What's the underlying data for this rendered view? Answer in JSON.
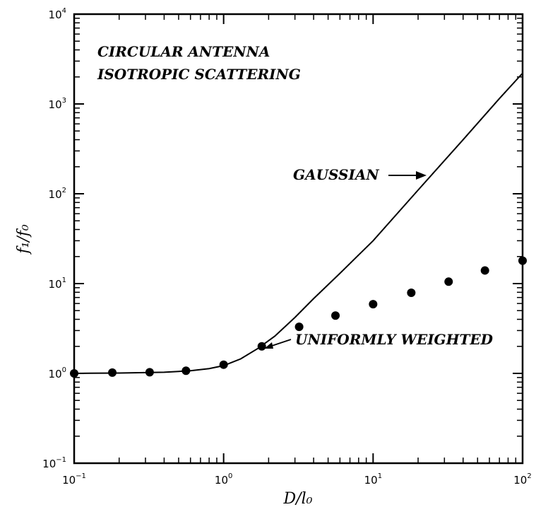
{
  "chart_data": {
    "type": "line",
    "title": "",
    "xlabel": "D/l₀",
    "ylabel": "f₁/f₀",
    "xscale": "log",
    "yscale": "log",
    "xlim": [
      0.1,
      100
    ],
    "ylim": [
      0.1,
      10000
    ],
    "x_ticks": [
      {
        "base": "10",
        "exp": "−1"
      },
      {
        "base": "10",
        "exp": "0"
      },
      {
        "base": "10",
        "exp": "1"
      },
      {
        "base": "10",
        "exp": "2"
      }
    ],
    "y_ticks": [
      {
        "base": "10",
        "exp": "−1"
      },
      {
        "base": "10",
        "exp": "0"
      },
      {
        "base": "10",
        "exp": "1"
      },
      {
        "base": "10",
        "exp": "2"
      },
      {
        "base": "10",
        "exp": "3"
      },
      {
        "base": "10",
        "exp": "4"
      }
    ],
    "grid": false,
    "annotations": [
      "CIRCULAR ANTENNA",
      "ISOTROPIC SCATTERING",
      "GAUSSIAN",
      "UNIFORMLY WEIGHTED"
    ],
    "series": [
      {
        "name": "GAUSSIAN",
        "style": "line",
        "x": [
          0.1,
          0.2,
          0.4,
          0.6,
          0.8,
          1.0,
          1.3,
          1.7,
          2.2,
          3.0,
          4.0,
          6.0,
          10,
          20,
          40,
          70,
          100
        ],
        "y": [
          1.0,
          1.01,
          1.03,
          1.07,
          1.13,
          1.22,
          1.45,
          1.9,
          2.6,
          4.2,
          6.8,
          13,
          30,
          110,
          400,
          1150,
          2200
        ]
      },
      {
        "name": "UNIFORMLY WEIGHTED",
        "style": "points",
        "x": [
          0.1,
          0.18,
          0.32,
          0.56,
          1.0,
          1.8,
          3.2,
          5.6,
          10,
          18,
          32,
          56,
          100
        ],
        "y": [
          1.0,
          1.02,
          1.03,
          1.07,
          1.25,
          2.0,
          3.3,
          4.4,
          5.9,
          7.9,
          10.5,
          14.0,
          18.0
        ]
      }
    ]
  }
}
